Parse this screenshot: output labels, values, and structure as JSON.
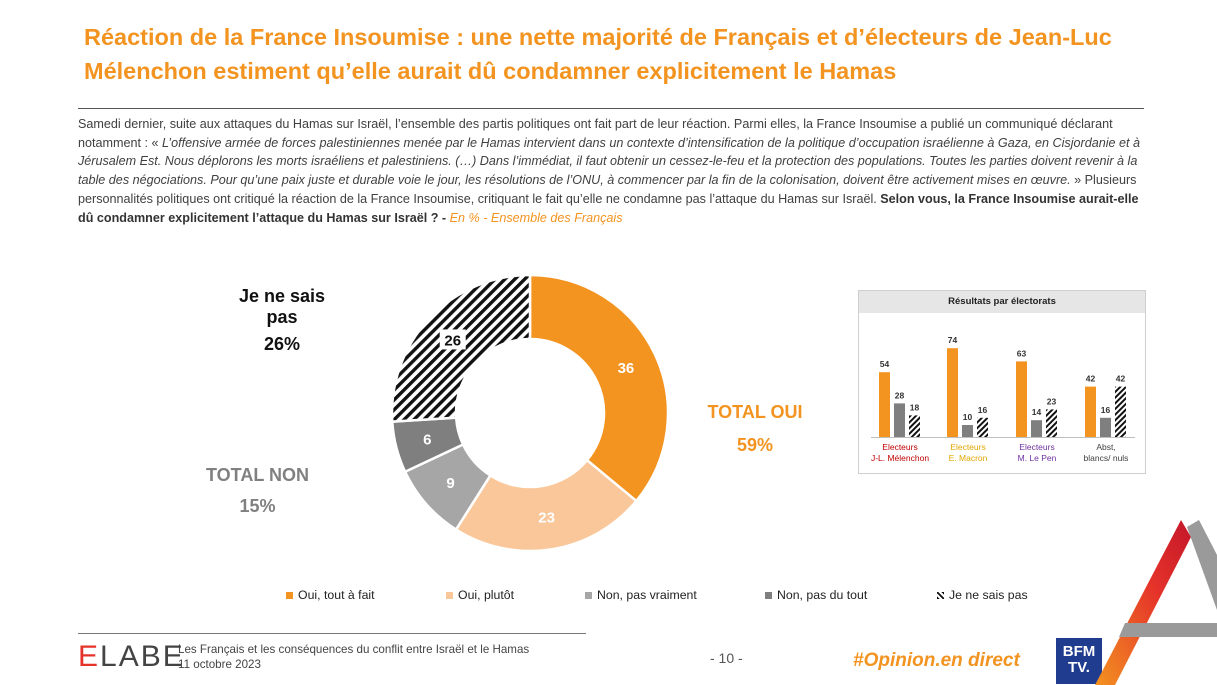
{
  "title": "Réaction de la France Insoumise : une nette majorité de Français et d’électeurs de Jean-Luc Mélenchon estiment qu’elle aurait dû condamner explicitement le Hamas",
  "intro": {
    "p1": "Samedi dernier, suite aux attaques du Hamas sur Israël, l’ensemble des partis politiques ont fait part de leur réaction. Parmi elles, la France Insoumise a publié un communiqué déclarant notamment : « ",
    "quote": "L’offensive armée de forces palestiniennes menée par le Hamas intervient dans un contexte d’intensification de la politique d’occupation israélienne à Gaza, en Cisjordanie et à Jérusalem Est. Nous déplorons les morts israéliens et palestiniens. (…) Dans l’immédiat, il faut obtenir un cessez-le-feu et la protection des populations. Toutes les parties doivent revenir à la table des négociations. Pour qu’une paix juste et durable voie le jour, les résolutions de l’ONU, à commencer par la fin de la colonisation, doivent être activement mises en œuvre.",
    "p2": " » Plusieurs personnalités politiques ont critiqué la réaction de la France Insoumise, critiquant le fait qu’elle ne condamne pas l’attaque du Hamas sur Israël. ",
    "question": "Selon vous, la France Insoumise aurait-elle dû condamner explicitement l’attaque du Hamas sur Israël ? -",
    "base": " En % - Ensemble des Français"
  },
  "totals": {
    "dontknow_label": "Je ne sais pas",
    "dontknow_value": "26%",
    "oui_label": "TOTAL OUI",
    "oui_value": "59%",
    "non_label": "TOTAL NON",
    "non_value": "15%"
  },
  "chart_data": [
    {
      "type": "pie",
      "title": "Selon vous, la France Insoumise aurait-elle dû condamner explicitement l’attaque du Hamas sur Israël ?",
      "unit": "%",
      "categories": [
        "Oui, tout à fait",
        "Oui, plutôt",
        "Non, pas vraiment",
        "Non, pas du tout",
        "Je ne sais pas"
      ],
      "values": [
        36,
        23,
        9,
        6,
        26
      ],
      "colors": [
        "#F39320",
        "#F9C79A",
        "#A6A6A6",
        "#7F7F7F",
        "hatch"
      ]
    },
    {
      "type": "bar",
      "title": "Résultats par électorats",
      "categories": [
        "Electeurs J-L. Mélenchon",
        "Electeurs E. Macron",
        "Electeurs M. Le Pen",
        "Abst, blancs/ nuls"
      ],
      "category_lines": [
        [
          "Electeurs",
          "J-L. Mélenchon"
        ],
        [
          "Electeurs",
          "E. Macron"
        ],
        [
          "Electeurs",
          "M. Le Pen"
        ],
        [
          "Abst,",
          "blancs/ nuls"
        ]
      ],
      "category_colors": [
        "#C00000",
        "#E0A800",
        "#7030A0",
        "#404040"
      ],
      "series": [
        {
          "name": "Total Oui",
          "values": [
            54,
            74,
            63,
            42
          ]
        },
        {
          "name": "Total Non",
          "values": [
            28,
            10,
            14,
            16
          ]
        },
        {
          "name": "Je ne sais pas",
          "values": [
            18,
            16,
            23,
            42
          ]
        }
      ],
      "ylim": [
        0,
        80
      ]
    }
  ],
  "legend": [
    "Oui, tout à fait",
    "Oui, plutôt",
    "Non, pas vraiment",
    "Non, pas du tout",
    "Je ne sais pas"
  ],
  "footer": {
    "brand_e": "E",
    "brand_rest": "LABE",
    "study": "Les Français et les conséquences du conflit entre Israël et le Hamas",
    "date": "11 octobre 2023",
    "page": "- 10 -",
    "hashtag": "#Opinion.en direct",
    "bfm_line1": "BFM",
    "bfm_line2": "TV."
  },
  "colors": {
    "accent": "#F39320",
    "light_orange": "#F9C79A",
    "light_grey": "#A6A6A6",
    "dark_grey": "#7F7F7F"
  }
}
